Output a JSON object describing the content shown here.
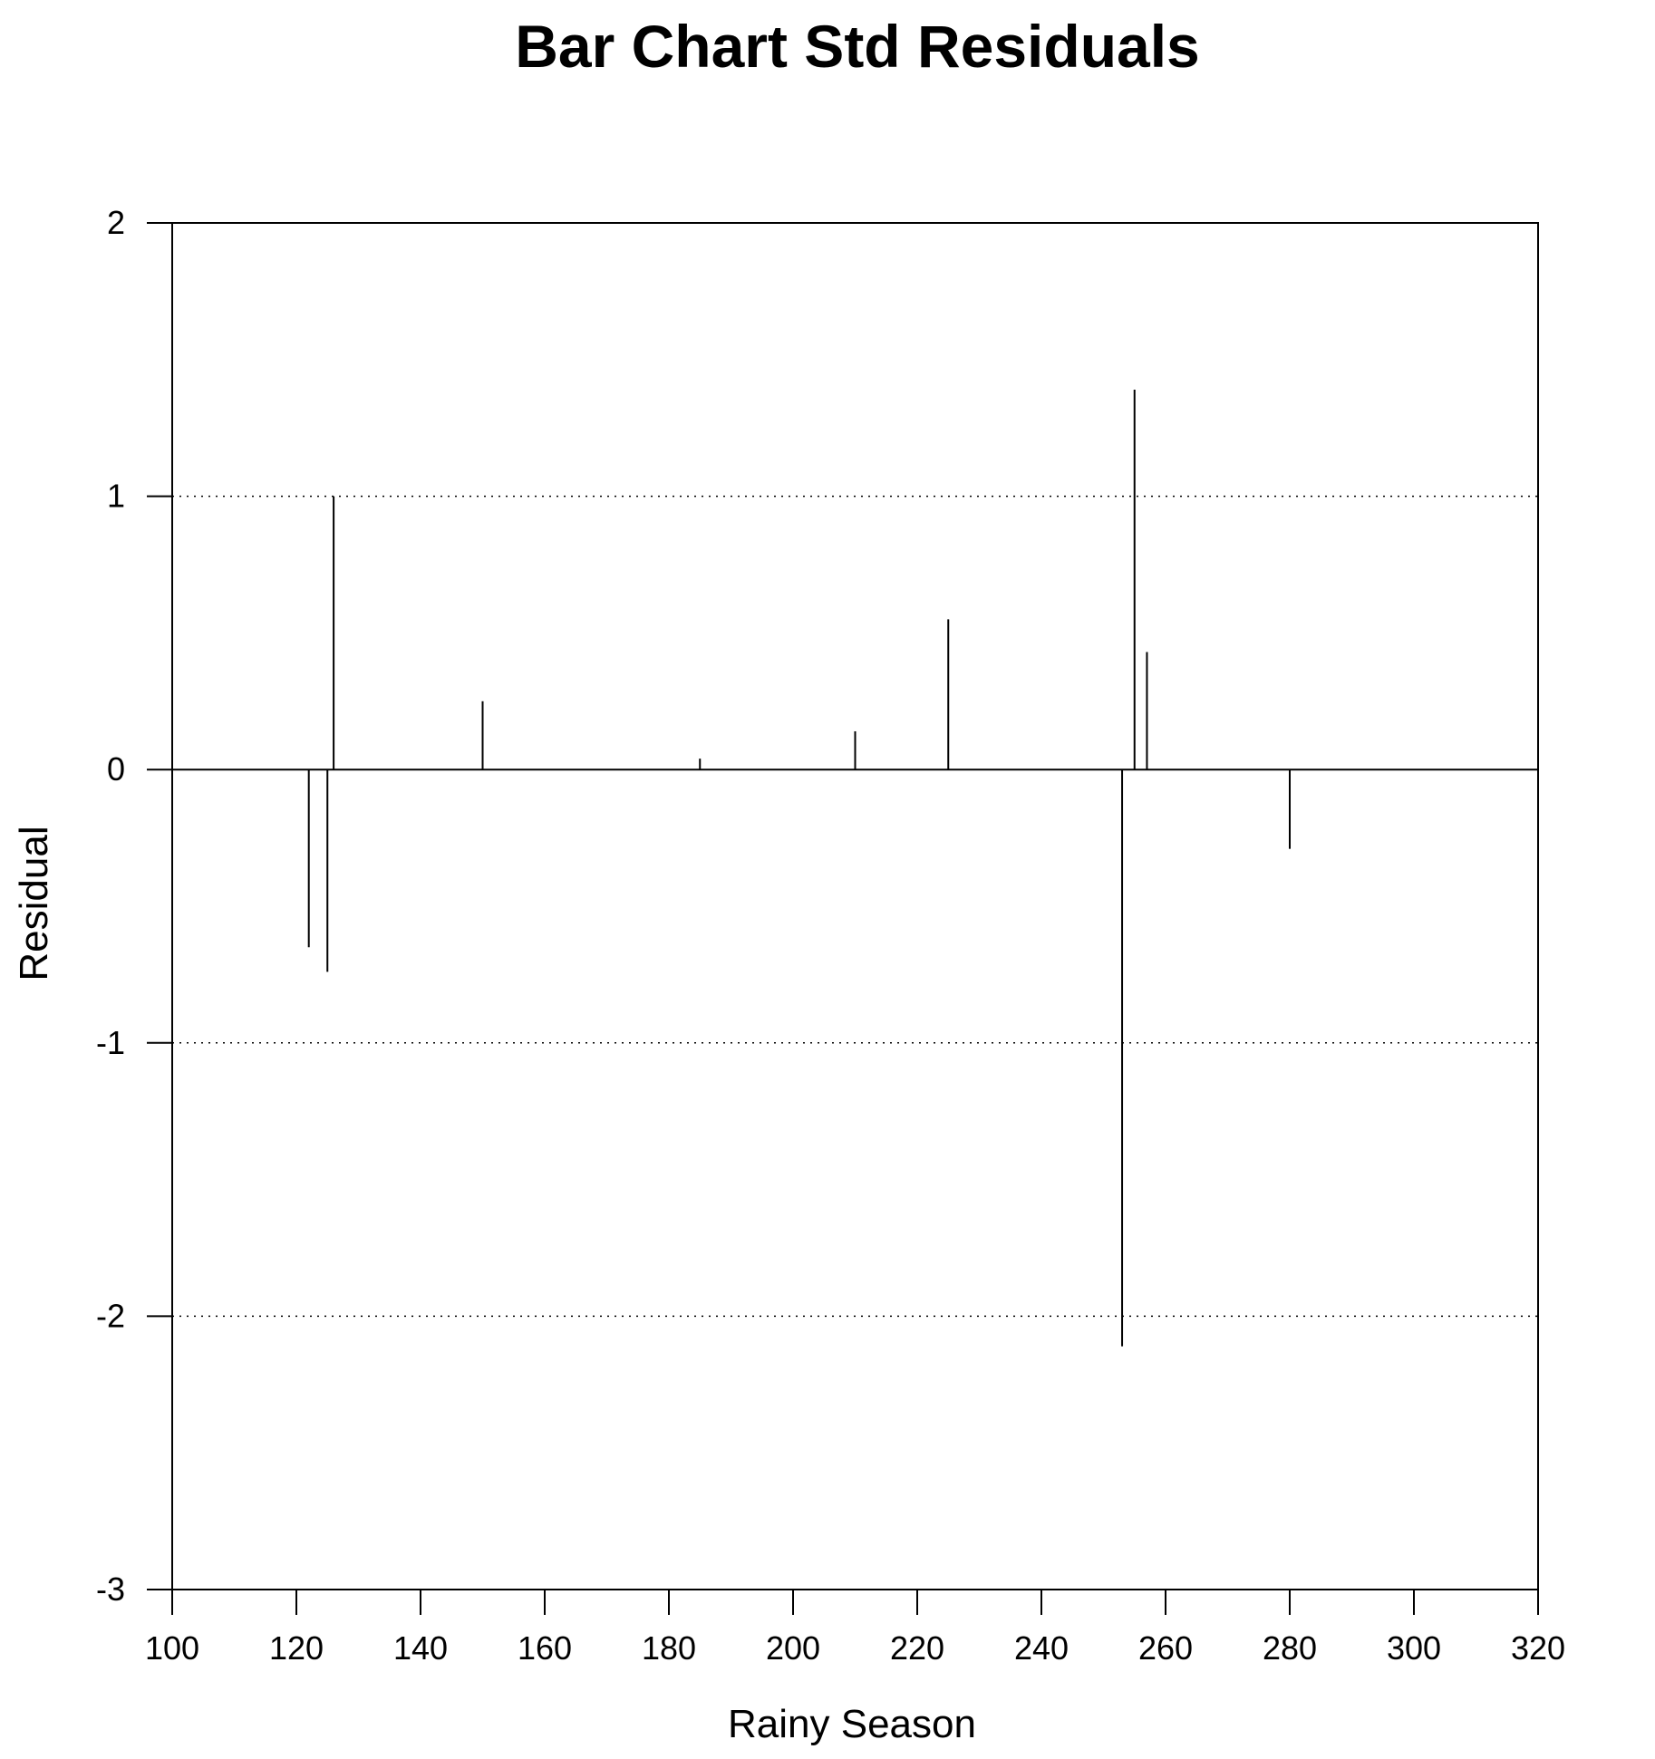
{
  "chart_data": {
    "type": "bar",
    "title": "Bar Chart Std Residuals",
    "xlabel": "Rainy Season",
    "ylabel": "Residual",
    "xlim": [
      100,
      320
    ],
    "ylim": [
      -3,
      2
    ],
    "x_ticks": [
      100,
      120,
      140,
      160,
      180,
      200,
      220,
      240,
      260,
      280,
      300,
      320
    ],
    "y_ticks": [
      -3,
      -2,
      -1,
      0,
      1,
      2
    ],
    "gridlines_y": [
      -2,
      -1,
      1
    ],
    "grid": "dotted horizontal",
    "legend": "none",
    "bar_color": "#000000",
    "series": [
      {
        "x": [
          122,
          125,
          126,
          150,
          185,
          210,
          225,
          253,
          255,
          257,
          280
        ],
        "values": [
          -0.65,
          -0.74,
          1.0,
          0.25,
          0.04,
          0.14,
          0.55,
          -2.11,
          1.39,
          0.43,
          -0.29
        ]
      }
    ]
  }
}
